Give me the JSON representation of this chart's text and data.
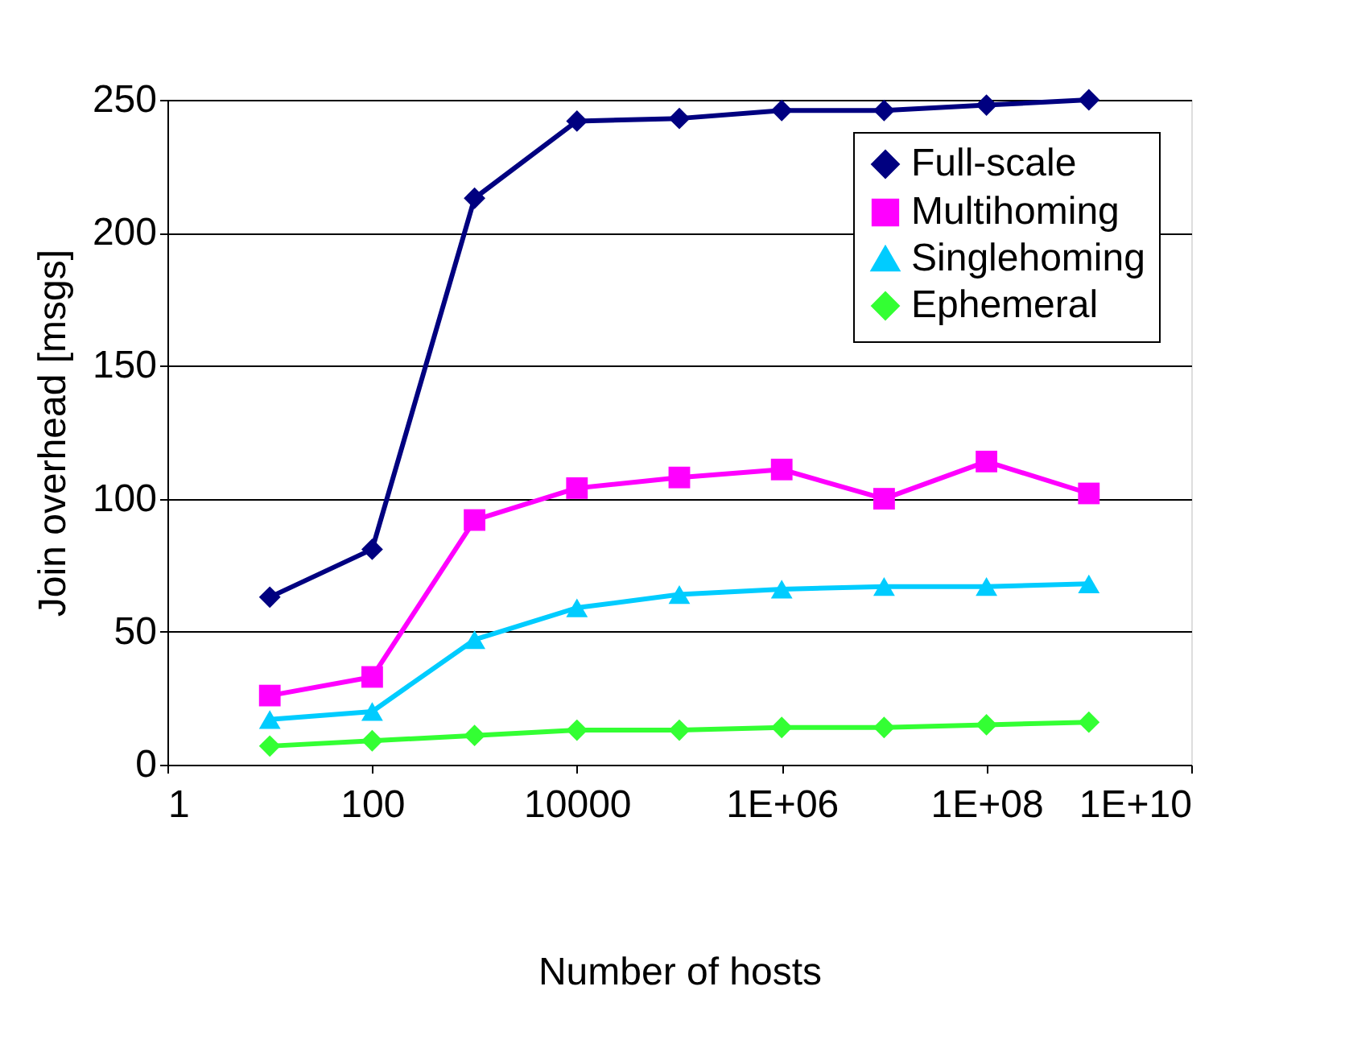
{
  "chart_data": {
    "type": "line",
    "xlabel": "Number of hosts",
    "ylabel": "Join overhead [msgs]",
    "x": [
      10,
      100,
      1000,
      10000,
      100000,
      1000000,
      10000000,
      100000000,
      1000000000
    ],
    "log": "x",
    "xlim": [
      1,
      10000000000
    ],
    "xticks": [
      1,
      100,
      10000,
      {
        "value": 1000000,
        "label": "1E+06"
      },
      {
        "value": 100000000,
        "label": "1E+08"
      },
      {
        "value": 10000000000,
        "label": "1E+10"
      }
    ],
    "ylim": [
      0,
      250
    ],
    "yticks": [
      0,
      50,
      100,
      150,
      200,
      250
    ],
    "grid": "y",
    "legend": "top right",
    "series": [
      {
        "name": "Full-scale",
        "color": "#000080",
        "marker": "diamond",
        "values": [
          63,
          81,
          213,
          242,
          243,
          246,
          246,
          248,
          250
        ]
      },
      {
        "name": "Multihoming",
        "color": "#ff00ff",
        "marker": "square",
        "values": [
          26,
          33,
          92,
          104,
          108,
          111,
          100,
          114,
          102
        ]
      },
      {
        "name": "Singlehoming",
        "color": "#00ccff",
        "marker": "triangle",
        "values": [
          17,
          20,
          47,
          59,
          64,
          66,
          67,
          67,
          68
        ]
      },
      {
        "name": "Ephemeral",
        "color": "#33ff33",
        "marker": "diamond",
        "values": [
          7,
          9,
          11,
          13,
          13,
          14,
          14,
          15,
          16
        ]
      }
    ]
  }
}
